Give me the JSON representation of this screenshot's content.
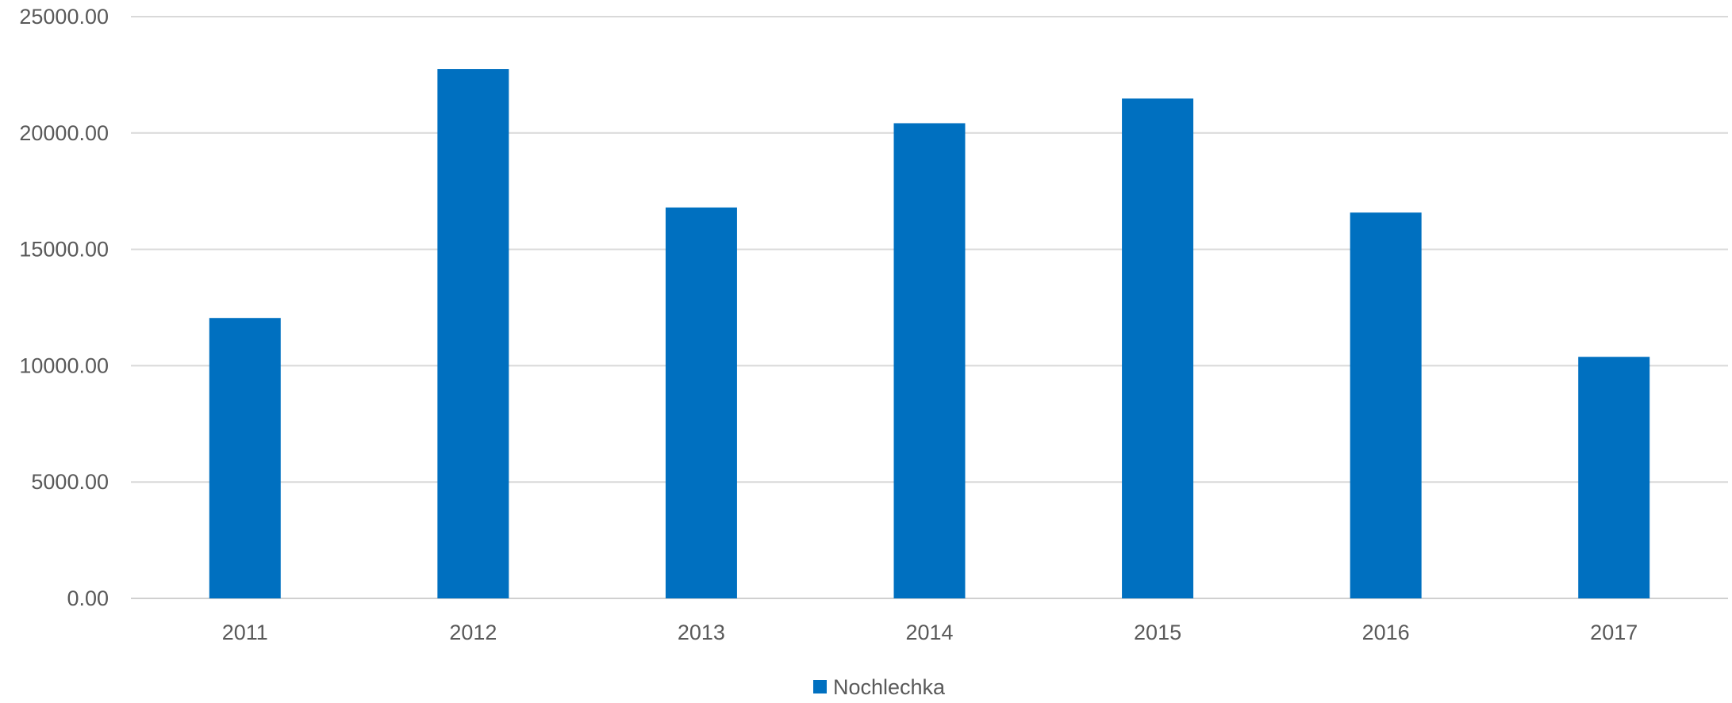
{
  "chart_data": {
    "type": "bar",
    "categories": [
      "2011",
      "2012",
      "2013",
      "2014",
      "2015",
      "2016",
      "2017"
    ],
    "series": [
      {
        "name": "Nochlechka",
        "values": [
          12050,
          22750,
          16800,
          20420,
          21480,
          16580,
          10380
        ],
        "color": "#0070c0"
      }
    ],
    "yticks": [
      "0.00",
      "5000.00",
      "10000.00",
      "15000.00",
      "20000.00",
      "25000.00"
    ],
    "ylim": [
      0,
      25000
    ],
    "grid": true,
    "legend_position": "bottom-center"
  }
}
